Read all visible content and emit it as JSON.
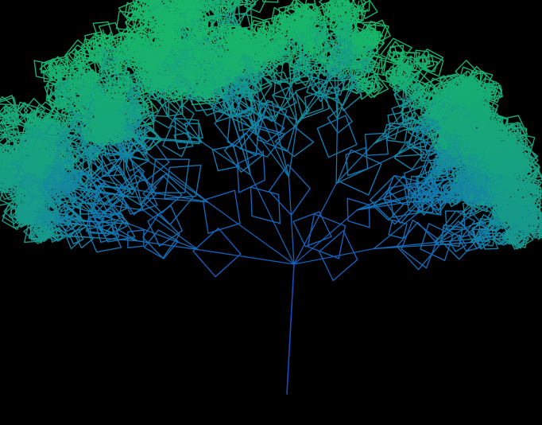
{
  "scene": {
    "background_color": "#000000",
    "subject": "fractal-tree",
    "render_style": "wireframe",
    "branch_shape": "diamond",
    "gradient": {
      "trunk_color": "#1a3fc8",
      "mid_color": "#1378b0",
      "tip_color": "#18b46a"
    }
  }
}
